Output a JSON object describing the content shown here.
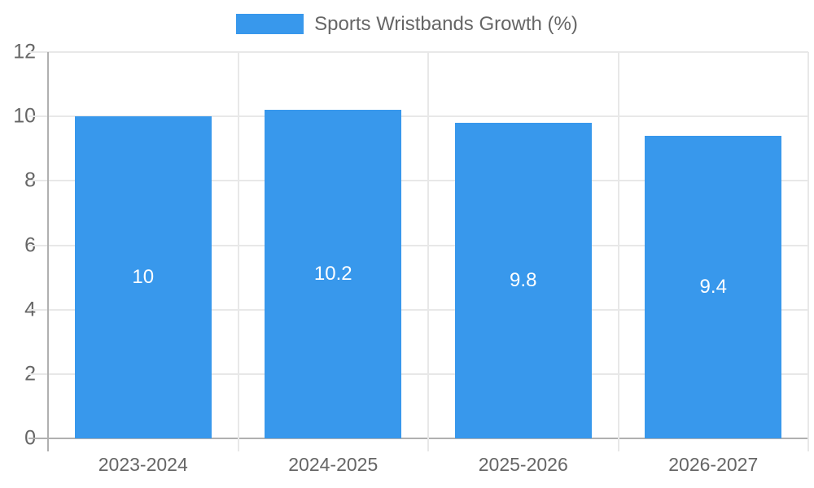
{
  "legend": {
    "label": "Sports Wristbands Growth (%)"
  },
  "chart_data": {
    "type": "bar",
    "title": "",
    "xlabel": "",
    "ylabel": "",
    "legend_entries": [
      "Sports Wristbands Growth (%)"
    ],
    "legend_position": "top-center",
    "categories": [
      "2023-2024",
      "2024-2025",
      "2025-2026",
      "2026-2027"
    ],
    "values": [
      10,
      10.2,
      9.8,
      9.4
    ],
    "value_labels": [
      "10",
      "10.2",
      "9.8",
      "9.4"
    ],
    "ylim": [
      0,
      12
    ],
    "yticks": [
      0,
      2,
      4,
      6,
      8,
      10,
      12
    ],
    "grid": true,
    "bar_percentage_of_slot": 0.72
  },
  "colors": {
    "bar": "#3898ec",
    "grid_light": "#e8e8e8",
    "axis_line": "#b0b0b0",
    "axis_text": "#666666",
    "value_label_text": "#ffffff",
    "background": "#ffffff"
  }
}
